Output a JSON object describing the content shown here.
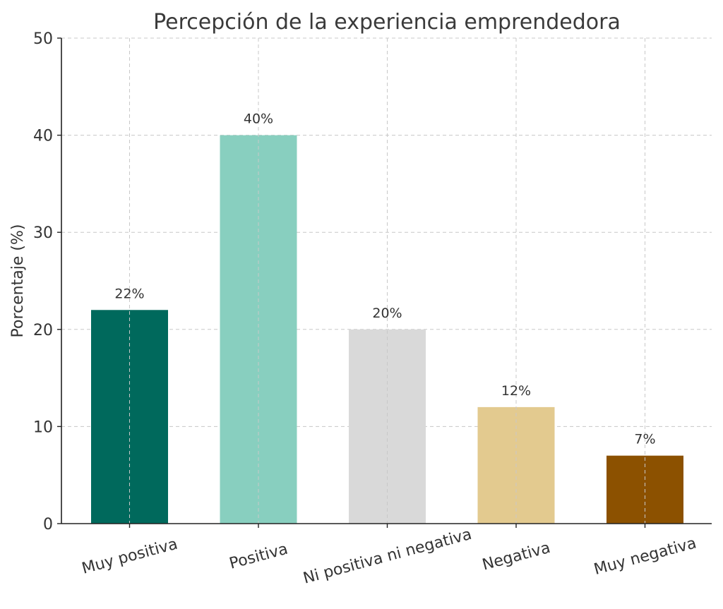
{
  "chart_data": {
    "type": "bar",
    "title": "Percepción de la experiencia emprendedora",
    "xlabel": "",
    "ylabel": "Porcentaje (%)",
    "ylim": [
      0,
      50
    ],
    "yticks": [
      0,
      10,
      20,
      30,
      40,
      50
    ],
    "grid": true,
    "categories": [
      "Muy positiva",
      "Positiva",
      "Ni positiva ni negativa",
      "Negativa",
      "Muy negativa"
    ],
    "values": [
      22,
      40,
      20,
      12,
      7
    ],
    "data_labels": [
      "22%",
      "40%",
      "20%",
      "12%",
      "7%"
    ],
    "colors": [
      "#00695c",
      "#88cfbf",
      "#d9d9d9",
      "#e3ca8f",
      "#8c5100"
    ]
  }
}
